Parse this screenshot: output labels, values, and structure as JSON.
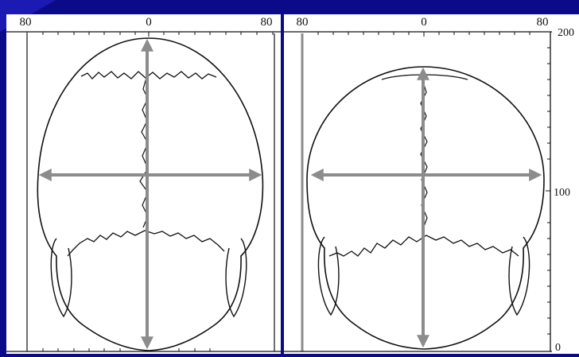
{
  "colors": {
    "background": "#0b0b8a",
    "panel": "#ffffff",
    "ink": "#111111",
    "arrow": "#8c8c8c",
    "accent": "#2a2ad6"
  },
  "left_panel": {
    "scale_left": "80",
    "scale_center": "0",
    "scale_right": "80"
  },
  "right_panel": {
    "scale_left": "80",
    "scale_center": "0",
    "scale_right": "80"
  },
  "vertical_scale": {
    "top": "200",
    "middle": "100",
    "bottom": "0"
  },
  "icons": {
    "horizontal_arrow": "double-headed-arrow-icon",
    "vertical_arrow": "double-headed-arrow-icon"
  }
}
